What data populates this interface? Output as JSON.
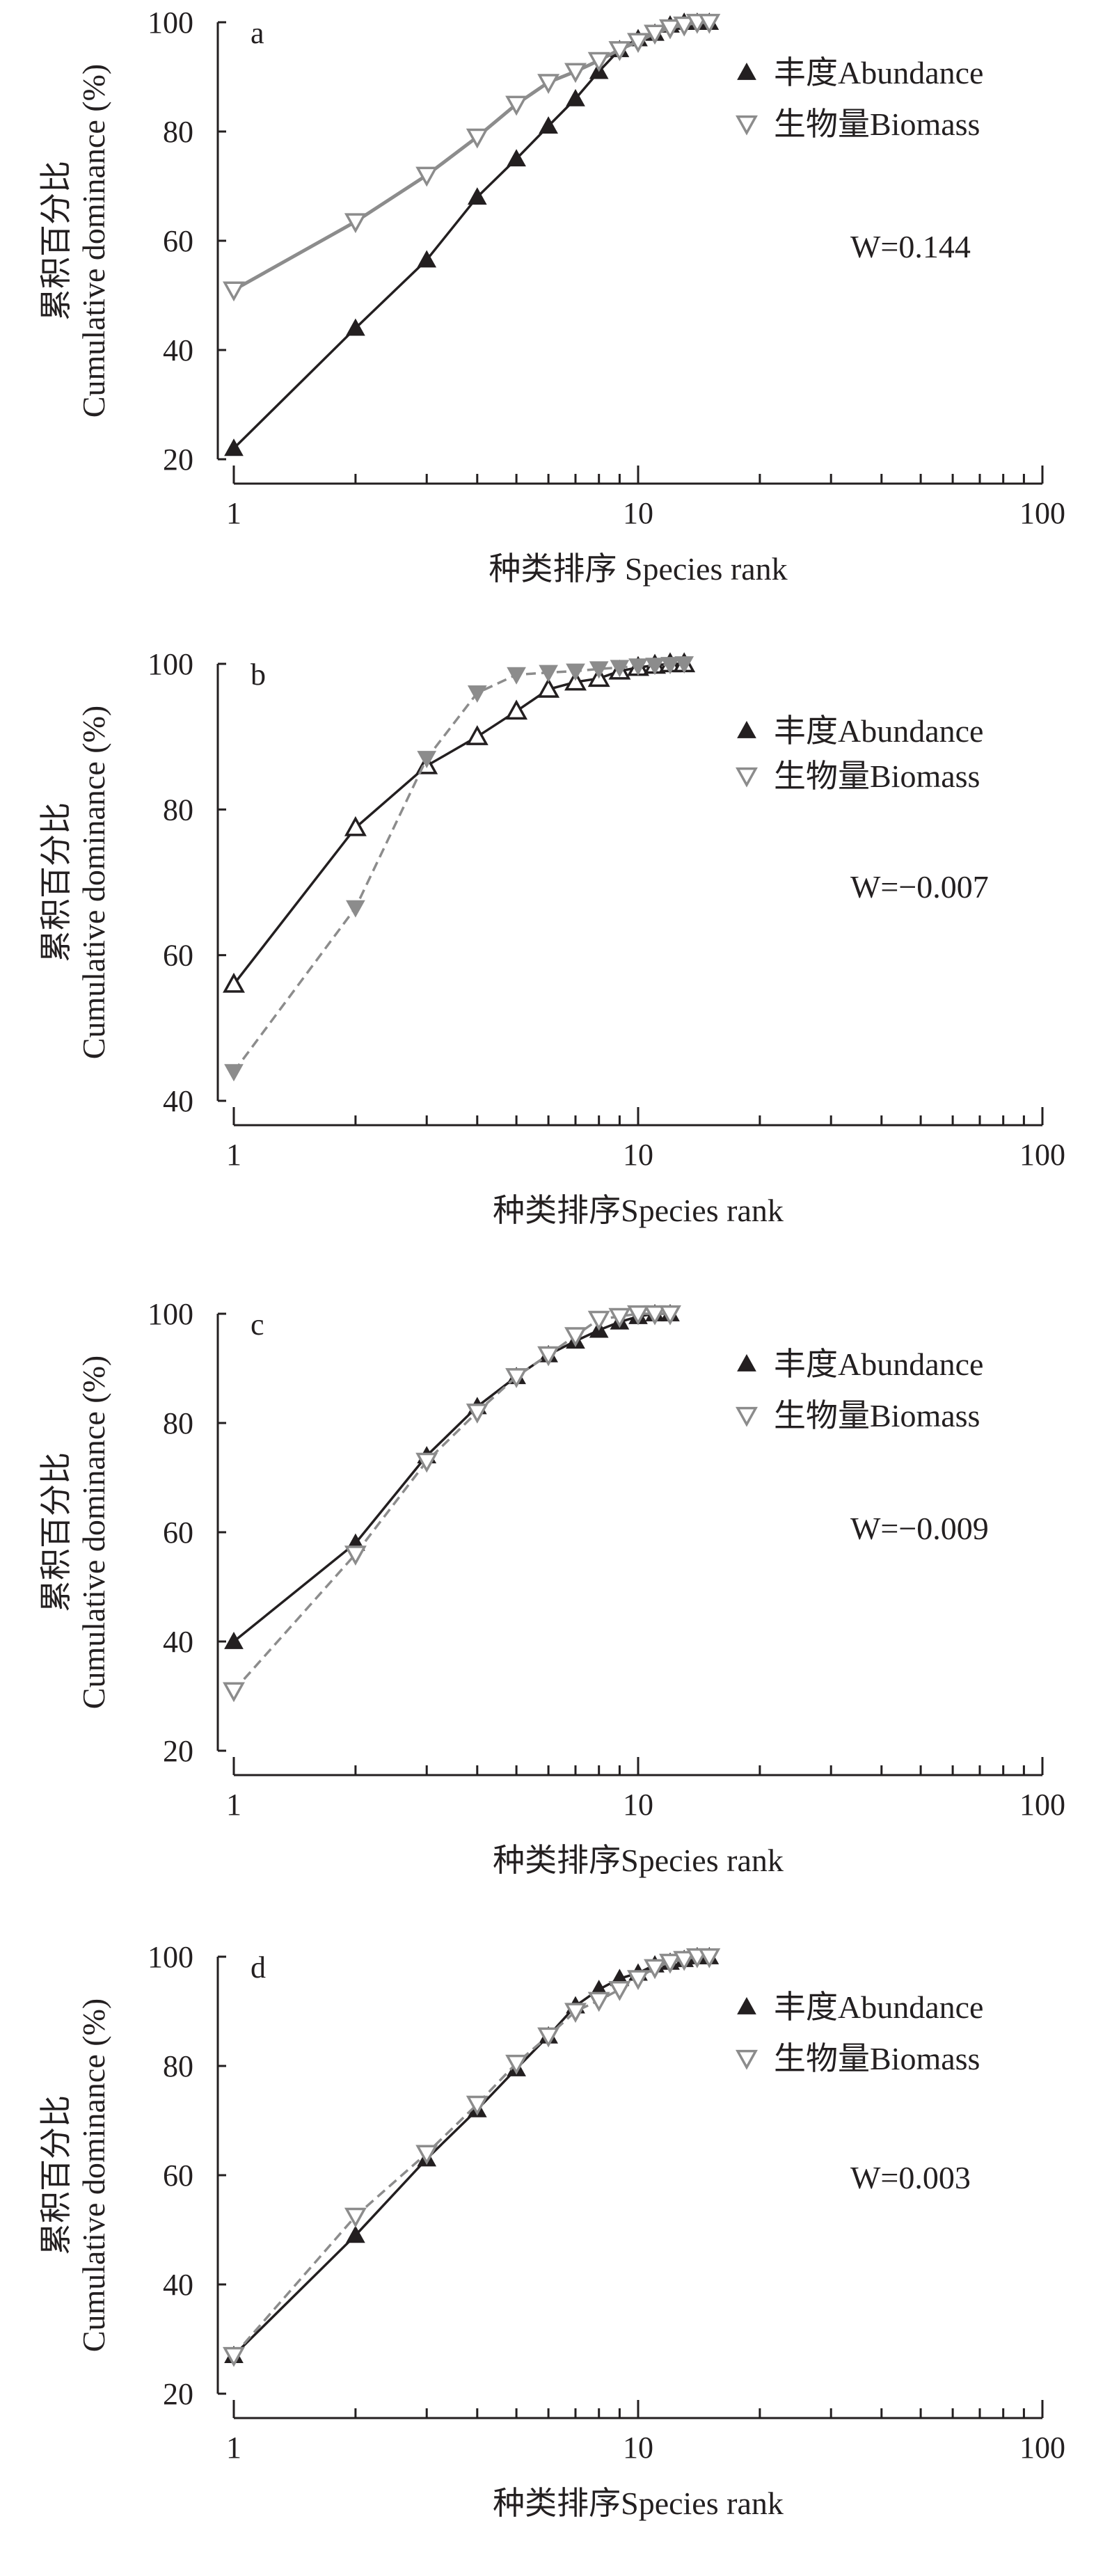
{
  "chart_data": [
    {
      "type": "line",
      "panel_label": "a",
      "xlabel": "种类排序 Species rank",
      "ylabel_cn": "累积百分比",
      "ylabel_en": "Cumulative dominance (%)",
      "xscale": "log",
      "xlim": [
        1,
        100
      ],
      "xticks": [
        "1",
        "10",
        "100"
      ],
      "ylim": [
        20,
        100
      ],
      "yticks": [
        "20",
        "40",
        "60",
        "80",
        "100"
      ],
      "annotation": "W=0.144",
      "annotation_var": "W",
      "annotation_val": "=0.144",
      "legend_position": "right",
      "series": [
        {
          "name": "丰度Abundance",
          "marker": "triangle-up-filled",
          "color": "#231f20",
          "values": [
            22,
            44,
            56.5,
            68,
            75,
            81,
            86,
            91,
            95,
            97,
            98,
            99.5,
            100,
            100,
            100
          ]
        },
        {
          "name": "生物量Biomass",
          "marker": "triangle-down-open",
          "color": "#8c8c8c",
          "values": [
            51,
            63.5,
            72,
            79,
            85,
            89,
            91,
            93,
            95,
            96.5,
            98,
            99,
            99.5,
            100,
            100
          ]
        }
      ]
    },
    {
      "type": "line",
      "panel_label": "b",
      "xlabel": "种类排序Species rank",
      "ylabel_cn": "累积百分比",
      "ylabel_en": "Cumulative dominance (%)",
      "xscale": "log",
      "xlim": [
        1,
        100
      ],
      "xticks": [
        "1",
        "10",
        "100"
      ],
      "ylim": [
        40,
        100
      ],
      "yticks": [
        "40",
        "60",
        "80",
        "100"
      ],
      "annotation": "W=−0.007",
      "annotation_var": "W",
      "annotation_val": "=−0.007",
      "legend_position": "right",
      "series": [
        {
          "name": "丰度Abundance",
          "marker": "triangle-up-open",
          "color": "#231f20",
          "values": [
            56,
            77.5,
            86,
            90,
            93.5,
            96.5,
            97.5,
            98,
            99,
            99.5,
            99.8,
            100,
            100
          ]
        },
        {
          "name": "生物量Biomass",
          "marker": "triangle-down-filled",
          "color": "#8c8c8c",
          "values": [
            44,
            66.5,
            87,
            96,
            98.5,
            98.8,
            99,
            99.3,
            99.5,
            99.7,
            99.8,
            99.9,
            100
          ]
        }
      ]
    },
    {
      "type": "line",
      "panel_label": "c",
      "xlabel": "种类排序Species rank",
      "ylabel_cn": "累积百分比",
      "ylabel_en": "Cumulative dominance (%)",
      "xscale": "log",
      "xlim": [
        1,
        100
      ],
      "xticks": [
        "1",
        "10",
        "100"
      ],
      "ylim": [
        20,
        100
      ],
      "yticks": [
        "20",
        "40",
        "60",
        "80",
        "100"
      ],
      "annotation": "W=−0.009",
      "annotation_var": "W",
      "annotation_val": "=−0.009",
      "legend_position": "right",
      "series": [
        {
          "name": "丰度Abundance",
          "marker": "triangle-up-filled",
          "color": "#231f20",
          "values": [
            40,
            58,
            74,
            83,
            88.5,
            92.5,
            95,
            97,
            98.5,
            99.5,
            100,
            100
          ]
        },
        {
          "name": "生物量Biomass",
          "marker": "triangle-down-open",
          "color": "#8c8c8c",
          "values": [
            31,
            56,
            73,
            82,
            88.5,
            92.5,
            96,
            99,
            99.5,
            100,
            100,
            100
          ]
        }
      ]
    },
    {
      "type": "line",
      "panel_label": "d",
      "xlabel": "种类排序Species rank",
      "ylabel_cn": "累积百分比",
      "ylabel_en": "Cumulative dominance (%)",
      "xscale": "log",
      "xlim": [
        1,
        100
      ],
      "xticks": [
        "1",
        "10",
        "100"
      ],
      "ylim": [
        20,
        100
      ],
      "yticks": [
        "20",
        "40",
        "60",
        "80",
        "100"
      ],
      "annotation": "W=0.003",
      "annotation_var": "W",
      "annotation_val": "=0.003",
      "legend_position": "right",
      "series": [
        {
          "name": "丰度Abundance",
          "marker": "triangle-up-filled",
          "color": "#231f20",
          "values": [
            27,
            49,
            63,
            72,
            79.5,
            85.5,
            91,
            94,
            96,
            97,
            98.5,
            99,
            99.5,
            100,
            100
          ]
        },
        {
          "name": "生物量Biomass",
          "marker": "triangle-down-open",
          "color": "#8c8c8c",
          "values": [
            27,
            52.5,
            64,
            73,
            80.5,
            85.5,
            90,
            92,
            94,
            96,
            98,
            99,
            99.5,
            100,
            100
          ]
        }
      ]
    }
  ]
}
